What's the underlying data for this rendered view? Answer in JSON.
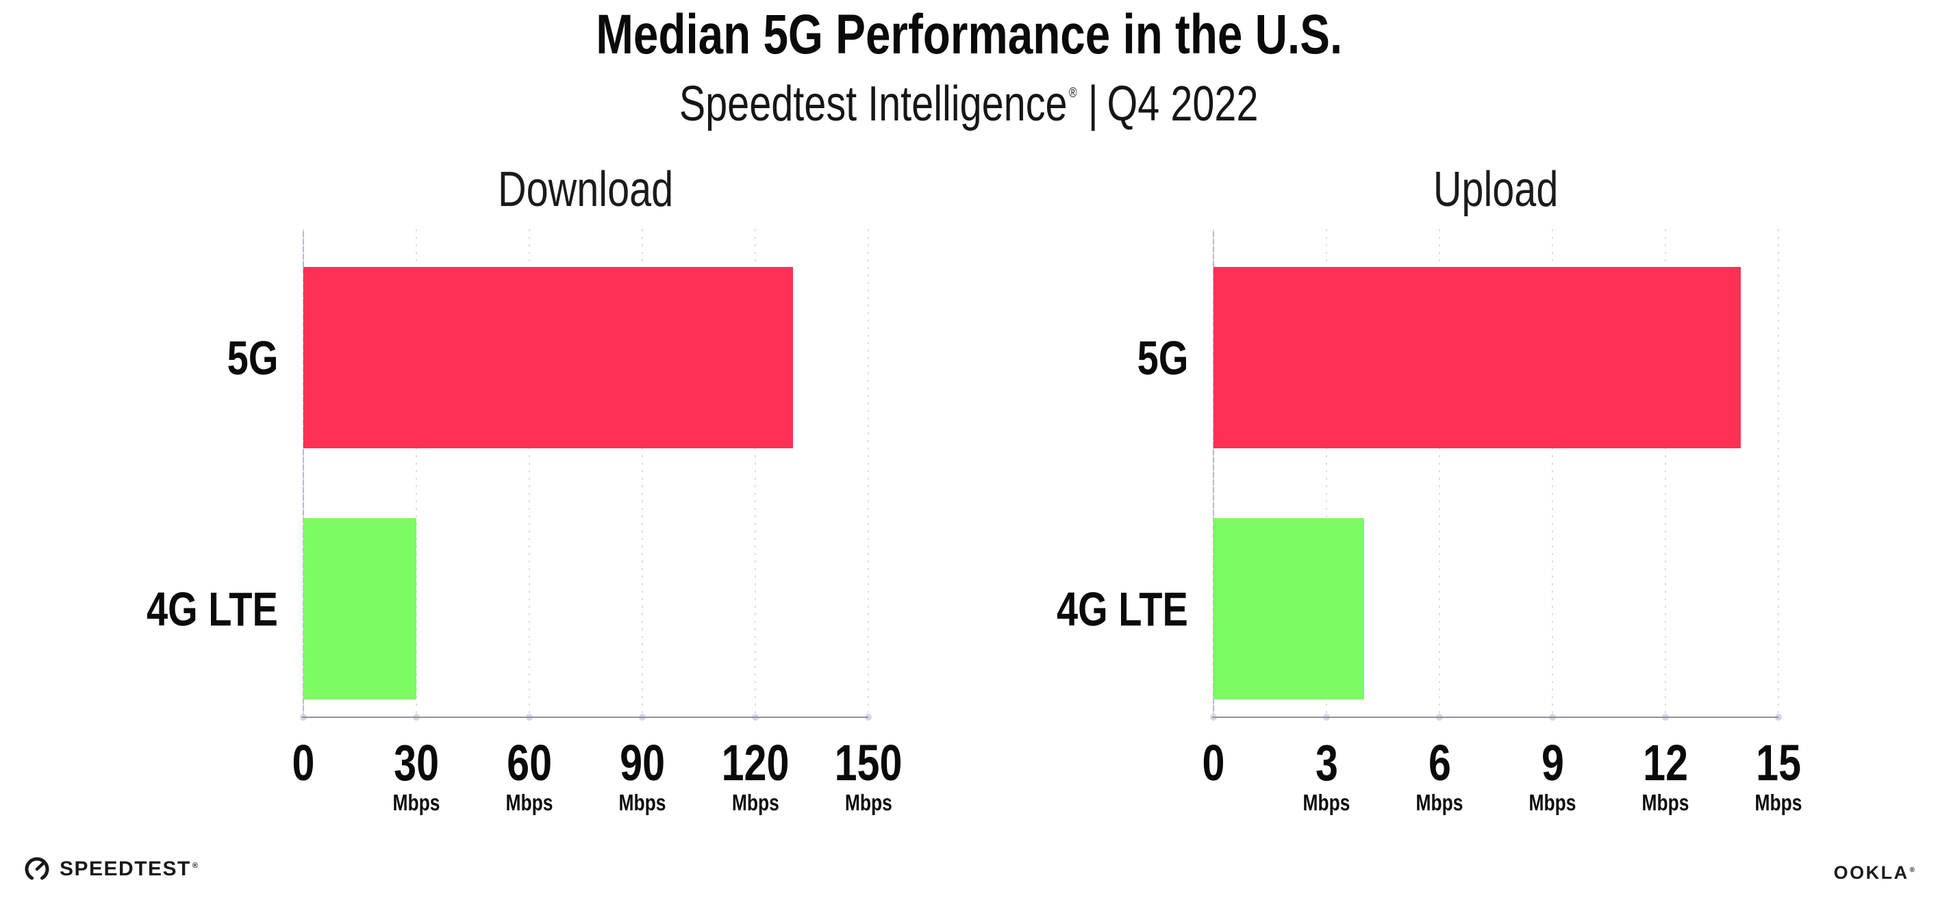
{
  "header": {
    "title": "Median 5G Performance in the U.S.",
    "subtitle_brand": "Speedtest Intelligence",
    "subtitle_reg": "®",
    "subtitle_sep": "|",
    "subtitle_period": "Q4 2022"
  },
  "chart_data": [
    {
      "type": "bar",
      "orientation": "horizontal",
      "title": "Download",
      "categories": [
        "5G",
        "4G LTE"
      ],
      "values": [
        130,
        30
      ],
      "unit": "Mbps",
      "xlim": [
        0,
        150
      ],
      "xticks": [
        0,
        30,
        60,
        90,
        120,
        150
      ],
      "bar_colors": [
        "#FF3056",
        "#7DFB63"
      ],
      "grid": "vertical-dotted",
      "legend": "none"
    },
    {
      "type": "bar",
      "orientation": "horizontal",
      "title": "Upload",
      "categories": [
        "5G",
        "4G LTE"
      ],
      "values": [
        14,
        4
      ],
      "unit": "Mbps",
      "xlim": [
        0,
        15
      ],
      "xticks": [
        0,
        3,
        6,
        9,
        12,
        15
      ],
      "bar_colors": [
        "#FF3056",
        "#7DFB63"
      ],
      "grid": "vertical-dotted",
      "legend": "none"
    }
  ],
  "footer": {
    "speedtest_wordmark": "SPEEDTEST",
    "speedtest_reg": "®",
    "ookla_wordmark": "OOKLA",
    "ookla_reg": "®"
  },
  "colors": {
    "bar_5g": "#FF3056",
    "bar_4g_lte": "#7DFB63",
    "axis_line": "#92929b",
    "gridline": "#dcdce6",
    "text": "#0d0d0d"
  }
}
